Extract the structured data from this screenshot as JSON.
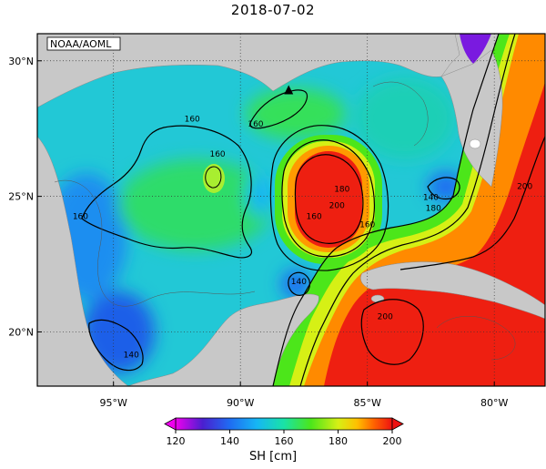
{
  "title": "2018-07-02",
  "credit": "NOAA/AOML",
  "colors": {
    "land": "#c8c8c8",
    "grid": "#333333",
    "frame": "#000000",
    "contour": "#000000"
  },
  "map": {
    "lon_range": [
      -98,
      -78
    ],
    "lat_range": [
      18,
      31
    ],
    "lon_ticks": [
      {
        "value": -95,
        "label": "95°W"
      },
      {
        "value": -90,
        "label": "90°W"
      },
      {
        "value": -85,
        "label": "85°W"
      },
      {
        "value": -80,
        "label": "80°W"
      }
    ],
    "lat_ticks": [
      {
        "value": 20,
        "label": "20°N"
      },
      {
        "value": 25,
        "label": "25°N"
      },
      {
        "value": 30,
        "label": "30°N"
      }
    ],
    "contour_labels": [
      {
        "text": "160",
        "lon": -91.9,
        "lat": 27.8
      },
      {
        "text": "160",
        "lon": -90.9,
        "lat": 26.5
      },
      {
        "text": "160",
        "lon": -89.4,
        "lat": 27.6
      },
      {
        "text": "160",
        "lon": -96.3,
        "lat": 24.2
      },
      {
        "text": "160",
        "lon": -87.1,
        "lat": 24.2
      },
      {
        "text": "160",
        "lon": -85.0,
        "lat": 23.9
      },
      {
        "text": "180",
        "lon": -86.0,
        "lat": 25.2
      },
      {
        "text": "200",
        "lon": -86.2,
        "lat": 24.6
      },
      {
        "text": "140",
        "lon": -82.5,
        "lat": 24.9
      },
      {
        "text": "180",
        "lon": -82.4,
        "lat": 24.5
      },
      {
        "text": "140",
        "lon": -87.7,
        "lat": 21.8
      },
      {
        "text": "140",
        "lon": -94.3,
        "lat": 19.1
      },
      {
        "text": "200",
        "lon": -84.3,
        "lat": 20.5
      },
      {
        "text": "200",
        "lon": -78.8,
        "lat": 25.3
      }
    ],
    "marker": {
      "name": "triangle",
      "lon": -88.1,
      "lat": 28.9
    }
  },
  "colorbar": {
    "min": 120,
    "max": 200,
    "ticks": [
      {
        "value": 120,
        "label": "120"
      },
      {
        "value": 140,
        "label": "140"
      },
      {
        "value": 160,
        "label": "160"
      },
      {
        "value": 180,
        "label": "180"
      },
      {
        "value": 200,
        "label": "200"
      }
    ],
    "label": "SH [cm]",
    "stops": [
      {
        "value": 120,
        "color": "#ee00ee"
      },
      {
        "value": 130,
        "color": "#4a1fd0"
      },
      {
        "value": 140,
        "color": "#1f6cf2"
      },
      {
        "value": 150,
        "color": "#16b6f4"
      },
      {
        "value": 160,
        "color": "#19e3a6"
      },
      {
        "value": 170,
        "color": "#4ce61a"
      },
      {
        "value": 180,
        "color": "#d6f015"
      },
      {
        "value": 187,
        "color": "#ffc000"
      },
      {
        "value": 193,
        "color": "#ff6600"
      },
      {
        "value": 200,
        "color": "#ee1111"
      }
    ]
  }
}
